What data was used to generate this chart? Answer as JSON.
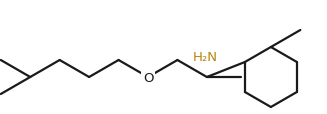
{
  "line_color": "#1a1a1a",
  "label_nh2_color": "#b8860b",
  "label_o_color": "#1a1a1a",
  "bg_color": "#ffffff",
  "line_width": 1.6,
  "font_size_label": 9.5,
  "font_size_nh2": 9.5
}
